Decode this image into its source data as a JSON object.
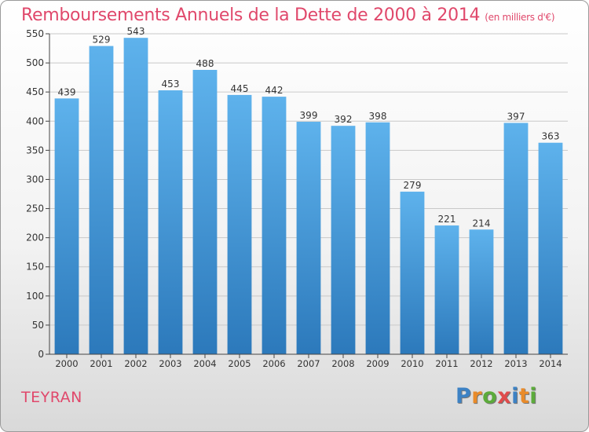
{
  "title": "Remboursements Annuels de la Dette de 2000 à 2014",
  "subtitle": "(en milliers d'€)",
  "commune": "TEYRAN",
  "logo": {
    "text": "Proxiti",
    "letters": [
      {
        "ch": "P",
        "color": "#3d82c4"
      },
      {
        "ch": "r",
        "color": "#e98b2a"
      },
      {
        "ch": "o",
        "color": "#5cab3b"
      },
      {
        "ch": "x",
        "color": "#e04b4b"
      },
      {
        "ch": "i",
        "color": "#3d82c4"
      },
      {
        "ch": "t",
        "color": "#e98b2a"
      },
      {
        "ch": "i",
        "color": "#5cab3b"
      }
    ]
  },
  "colors": {
    "title": "#e0486b",
    "bar_top": "#5eb2ec",
    "bar_bottom": "#2c79bb",
    "grid": "#c9c9c9",
    "axis": "#444444"
  },
  "chart_data": {
    "type": "bar",
    "title": "Remboursements Annuels de la Dette de 2000 à 2014",
    "subtitle": "(en milliers d'€)",
    "xlabel": "",
    "ylabel": "",
    "categories": [
      "2000",
      "2001",
      "2002",
      "2003",
      "2004",
      "2005",
      "2006",
      "2007",
      "2008",
      "2009",
      "2010",
      "2011",
      "2012",
      "2013",
      "2014"
    ],
    "values": [
      439,
      529,
      543,
      453,
      488,
      445,
      442,
      399,
      392,
      398,
      279,
      221,
      214,
      397,
      363
    ],
    "ylim": [
      0,
      550
    ],
    "yticks": [
      0,
      50,
      100,
      150,
      200,
      250,
      300,
      350,
      400,
      450,
      500,
      550
    ],
    "grid": true,
    "legend": "none"
  }
}
